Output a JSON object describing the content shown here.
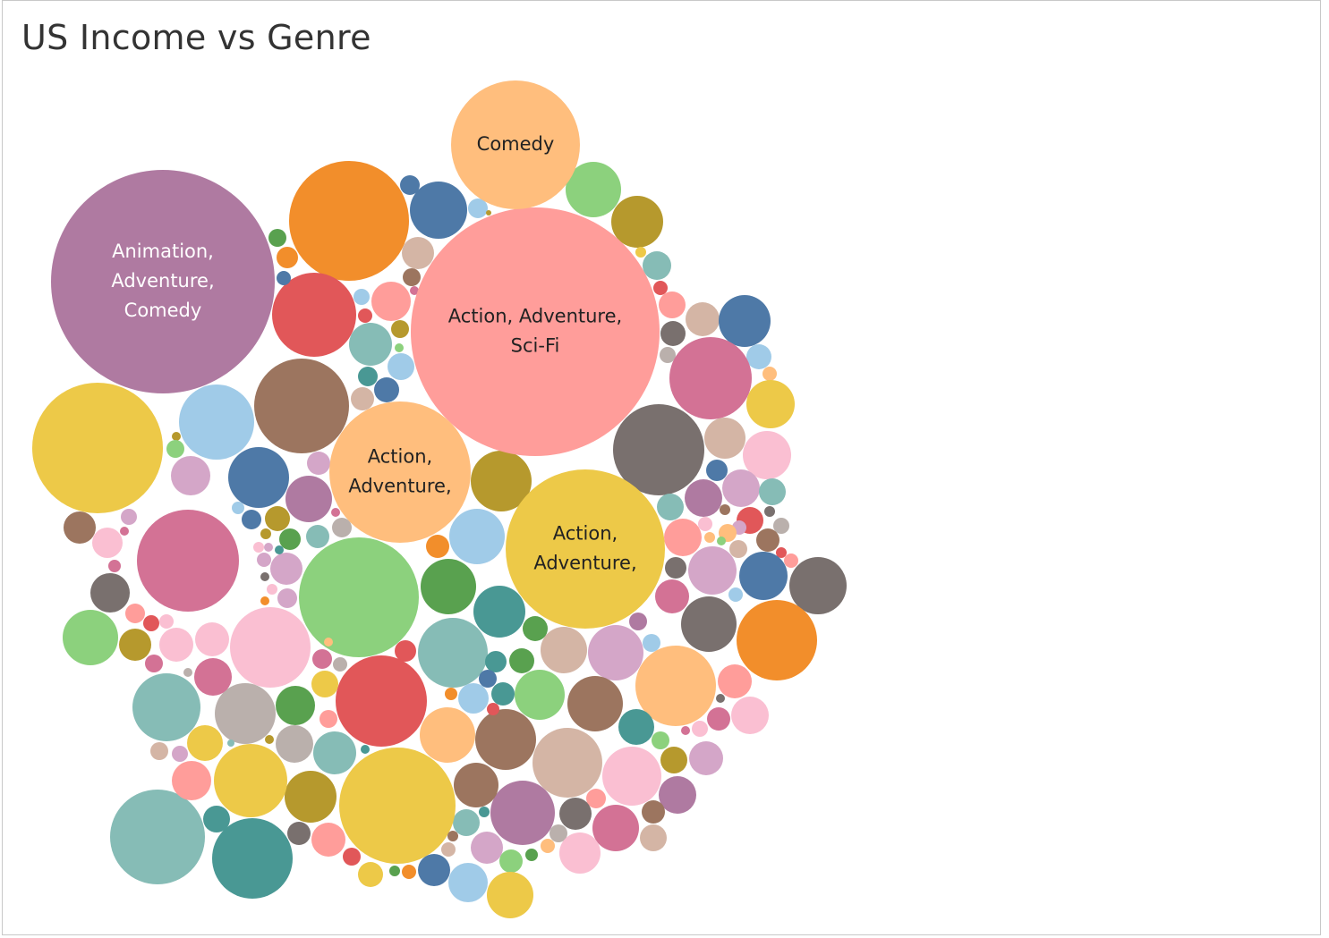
{
  "chart_data": {
    "type": "packed-bubble",
    "title": "US Income vs Genre",
    "measure": "US Income",
    "dimension": "Genre",
    "palette": {
      "purple": "#af7aa1",
      "orange": "#f28e2b",
      "lightorange": "#ffbe7d",
      "salmon": "#ff9d9a",
      "red": "#e15759",
      "yellow": "#edc948",
      "lightblue": "#a0cbe8",
      "blue": "#4e79a7",
      "brown": "#9c755f",
      "tan": "#d4b5a5",
      "green": "#59a14f",
      "lightgreen": "#8cd17d",
      "teal": "#499894",
      "lightteal": "#86bcb6",
      "olive": "#b6992d",
      "pink": "#d37295",
      "lightpink": "#fabfd2",
      "gray": "#79706e",
      "lightgray": "#bab0ac",
      "lavender": "#d4a6c8"
    },
    "labeled_bubbles": [
      {
        "genre": "Animation, Adventure, Comedy",
        "label_lines": [
          "Animation,",
          "Adventure,",
          "Comedy"
        ],
        "color": "purple",
        "text_color": "#ffffff",
        "relative_size": 125
      },
      {
        "genre": "Action, Adventure, Sci-Fi",
        "label_lines": [
          "Action, Adventure,",
          "Sci-Fi"
        ],
        "color": "salmon",
        "text_color": "#222222",
        "relative_size": 139
      },
      {
        "genre": "Comedy",
        "label_lines": [
          "Comedy"
        ],
        "color": "lightorange",
        "text_color": "#222222",
        "relative_size": 72
      },
      {
        "genre": "Action, Adventure,",
        "label_lines": [
          "Action,",
          "Adventure,"
        ],
        "color": "lightorange",
        "text_color": "#222222",
        "relative_size": 79
      },
      {
        "genre": "Action, Adventure,",
        "label_lines": [
          "Action,",
          "Adventure,"
        ],
        "color": "yellow",
        "text_color": "#222222",
        "relative_size": 89
      }
    ]
  }
}
